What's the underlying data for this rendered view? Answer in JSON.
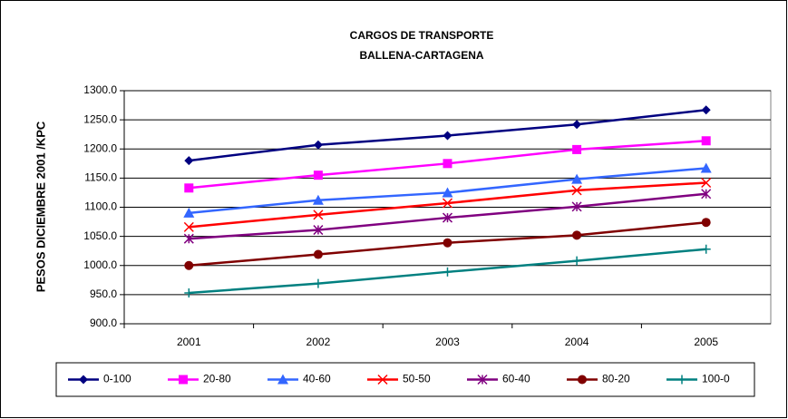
{
  "chart_data": {
    "type": "line",
    "title": "CARGOS DE TRANSPORTE",
    "subtitle": "BALLENA-CARTAGENA",
    "y_label": "PESOS DICIEMBRE 2001 /KPC",
    "categories": [
      "2001",
      "2002",
      "2003",
      "2004",
      "2005"
    ],
    "series": [
      {
        "name": "0-100",
        "color": "#000080",
        "marker": "diamond",
        "values": [
          1180,
          1207,
          1223,
          1242,
          1267
        ]
      },
      {
        "name": "20-80",
        "color": "#FF00FF",
        "marker": "square",
        "values": [
          1133,
          1155,
          1175,
          1199,
          1214
        ]
      },
      {
        "name": "40-60",
        "color": "#3366FF",
        "marker": "triangle",
        "values": [
          1090,
          1112,
          1125,
          1148,
          1167
        ]
      },
      {
        "name": "50-50",
        "color": "#FF0000",
        "marker": "x",
        "values": [
          1066,
          1087,
          1107,
          1129,
          1142
        ]
      },
      {
        "name": "60-40",
        "color": "#800080",
        "marker": "star",
        "values": [
          1046,
          1061,
          1082,
          1101,
          1123
        ]
      },
      {
        "name": "80-20",
        "color": "#800000",
        "marker": "circle",
        "values": [
          1000,
          1019,
          1039,
          1052,
          1074
        ]
      },
      {
        "name": "100-0",
        "color": "#008080",
        "marker": "plus",
        "values": [
          953,
          969,
          989,
          1008,
          1028
        ]
      }
    ],
    "ylim": [
      900,
      1300
    ],
    "yticks": [
      {
        "value": 900,
        "label": "900.0"
      },
      {
        "value": 950,
        "label": "950.0"
      },
      {
        "value": 1000,
        "label": "1000.0"
      },
      {
        "value": 1050,
        "label": "1050.0"
      },
      {
        "value": 1100,
        "label": "1100.0"
      },
      {
        "value": 1150,
        "label": "1150.0"
      },
      {
        "value": 1200,
        "label": "1200.0"
      },
      {
        "value": 1250,
        "label": "1250.0"
      },
      {
        "value": 1300,
        "label": "1300.0"
      }
    ],
    "grid": true,
    "legend": "bottom"
  }
}
